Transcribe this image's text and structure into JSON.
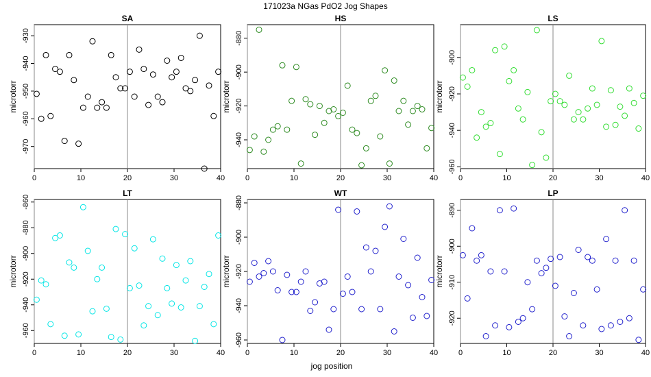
{
  "figure": {
    "title": "171023a   NGas PdO2 Jog Shapes",
    "xlabel": "jog position"
  },
  "chart_data": [
    {
      "type": "scatter",
      "title": "SA",
      "ylabel": "microtorr",
      "color": "#000000",
      "xlim": [
        0,
        40
      ],
      "ylim": [
        -978,
        -926
      ],
      "xticks": [
        0,
        10,
        20,
        30,
        40
      ],
      "yticks": [
        -930,
        -940,
        -950,
        -960,
        -970
      ],
      "vline": 20,
      "x": [
        0.5,
        1.5,
        2.5,
        3.5,
        4.5,
        5.5,
        6.5,
        7.5,
        8.5,
        9.5,
        10.5,
        11.5,
        12.5,
        13.5,
        14.5,
        15.5,
        16.5,
        17.5,
        18.5,
        19.5,
        20.5,
        21.5,
        22.5,
        23.5,
        24.5,
        25.5,
        26.5,
        27.5,
        28.5,
        29.5,
        30.5,
        31.5,
        32.5,
        33.5,
        34.5,
        35.5,
        36.5,
        37.5,
        38.5,
        39.5
      ],
      "y": [
        -951,
        -960,
        -937,
        -959,
        -942,
        -943,
        -968,
        -937,
        -946,
        -969,
        -956,
        -952,
        -932,
        -956,
        -954,
        -956,
        -937,
        -945,
        -949,
        -949,
        -943,
        -952,
        -935,
        -942,
        -955,
        -944,
        -952,
        -954,
        -939,
        -945,
        -943,
        -938,
        -949,
        -950,
        -946,
        -930,
        -978,
        -948,
        -959,
        -943
      ]
    },
    {
      "type": "scatter",
      "title": "HS",
      "ylabel": "microtorr",
      "color": "#2e8b22",
      "xlim": [
        0,
        40
      ],
      "ylim": [
        -957,
        -872
      ],
      "xticks": [
        0,
        10,
        20,
        30,
        40
      ],
      "yticks": [
        -880,
        -900,
        -920,
        -940
      ],
      "vline": 20,
      "x": [
        0.5,
        1.5,
        2.5,
        3.5,
        4.5,
        5.5,
        6.5,
        7.5,
        8.5,
        9.5,
        10.5,
        11.5,
        12.5,
        13.5,
        14.5,
        15.5,
        16.5,
        17.5,
        18.5,
        19.5,
        20.5,
        21.5,
        22.5,
        23.5,
        24.5,
        25.5,
        26.5,
        27.5,
        28.5,
        29.5,
        30.5,
        31.5,
        32.5,
        33.5,
        34.5,
        35.5,
        36.5,
        37.5,
        38.5,
        39.5
      ],
      "y": [
        -946,
        -938,
        -875,
        -947,
        -940,
        -934,
        -932,
        -896,
        -934,
        -917,
        -897,
        -954,
        -916,
        -919,
        -937,
        -920,
        -930,
        -923,
        -922,
        -926,
        -924,
        -908,
        -934,
        -936,
        -955,
        -945,
        -917,
        -914,
        -938,
        -899,
        -954,
        -905,
        -923,
        -917,
        -931,
        -923,
        -920,
        -922,
        -945,
        -933
      ]
    },
    {
      "type": "scatter",
      "title": "LS",
      "ylabel": "microtorr",
      "color": "#33dd33",
      "xlim": [
        0,
        40
      ],
      "ylim": [
        -961,
        -882
      ],
      "xticks": [
        0,
        10,
        20,
        30,
        40
      ],
      "yticks": [
        -900,
        -920,
        -940,
        -960
      ],
      "vline": 20,
      "x": [
        0.5,
        1.5,
        2.5,
        3.5,
        4.5,
        5.5,
        6.5,
        7.5,
        8.5,
        9.5,
        10.5,
        11.5,
        12.5,
        13.5,
        14.5,
        15.5,
        16.5,
        17.5,
        18.5,
        19.5,
        20.5,
        21.5,
        22.5,
        23.5,
        24.5,
        25.5,
        26.5,
        27.5,
        28.5,
        29.5,
        30.5,
        31.5,
        32.5,
        33.5,
        34.5,
        35.5,
        36.5,
        37.5,
        38.5,
        39.5
      ],
      "y": [
        -911,
        -916,
        -907,
        -944,
        -930,
        -938,
        -936,
        -896,
        -953,
        -894,
        -913,
        -907,
        -928,
        -934,
        -919,
        -959,
        -885,
        -941,
        -955,
        -924,
        -920,
        -924,
        -926,
        -910,
        -934,
        -930,
        -934,
        -928,
        -917,
        -926,
        -891,
        -938,
        -918,
        -937,
        -927,
        -932,
        -917,
        -925,
        -939,
        -921
      ]
    },
    {
      "type": "scatter",
      "title": "LT",
      "ylabel": "microtorr",
      "color": "#00e5e5",
      "xlim": [
        0,
        40
      ],
      "ylim": [
        -970,
        -858
      ],
      "xticks": [
        0,
        10,
        20,
        30,
        40
      ],
      "yticks": [
        -860,
        -880,
        -900,
        -920,
        -940,
        -960
      ],
      "vline": 20,
      "x": [
        0.5,
        1.5,
        2.5,
        3.5,
        4.5,
        5.5,
        6.5,
        7.5,
        8.5,
        9.5,
        10.5,
        11.5,
        12.5,
        13.5,
        14.5,
        15.5,
        16.5,
        17.5,
        18.5,
        19.5,
        20.5,
        21.5,
        22.5,
        23.5,
        24.5,
        25.5,
        26.5,
        27.5,
        28.5,
        29.5,
        30.5,
        31.5,
        32.5,
        33.5,
        34.5,
        35.5,
        36.5,
        37.5,
        38.5,
        39.5
      ],
      "y": [
        -936,
        -921,
        -924,
        -955,
        -888,
        -886,
        -964,
        -907,
        -911,
        -963,
        -864,
        -898,
        -945,
        -920,
        -911,
        -943,
        -965,
        -881,
        -967,
        -885,
        -927,
        -896,
        -925,
        -956,
        -941,
        -889,
        -948,
        -904,
        -927,
        -939,
        -909,
        -942,
        -921,
        -906,
        -968,
        -941,
        -926,
        -916,
        -955,
        -886
      ]
    },
    {
      "type": "scatter",
      "title": "WT",
      "ylabel": "microtorr",
      "color": "#2020cc",
      "xlim": [
        0,
        40
      ],
      "ylim": [
        -962,
        -878
      ],
      "xticks": [
        0,
        10,
        20,
        30,
        40
      ],
      "yticks": [
        -880,
        -900,
        -920,
        -940,
        -960
      ],
      "vline": 20,
      "x": [
        0.5,
        1.5,
        2.5,
        3.5,
        4.5,
        5.5,
        6.5,
        7.5,
        8.5,
        9.5,
        10.5,
        11.5,
        12.5,
        13.5,
        14.5,
        15.5,
        16.5,
        17.5,
        18.5,
        19.5,
        20.5,
        21.5,
        22.5,
        23.5,
        24.5,
        25.5,
        26.5,
        27.5,
        28.5,
        29.5,
        30.5,
        31.5,
        32.5,
        33.5,
        34.5,
        35.5,
        36.5,
        37.5,
        38.5,
        39.5
      ],
      "y": [
        -926,
        -915,
        -923,
        -921,
        -914,
        -920,
        -931,
        -960,
        -922,
        -932,
        -932,
        -926,
        -920,
        -943,
        -938,
        -927,
        -926,
        -954,
        -942,
        -884,
        -933,
        -923,
        -932,
        -885,
        -942,
        -906,
        -920,
        -908,
        -942,
        -894,
        -882,
        -955,
        -923,
        -901,
        -928,
        -947,
        -912,
        -935,
        -946,
        -925
      ]
    },
    {
      "type": "scatter",
      "title": "LP",
      "ylabel": "microtorr",
      "color": "#2020cc",
      "xlim": [
        0,
        40
      ],
      "ylim": [
        -927,
        -887
      ],
      "xticks": [
        0,
        10,
        20,
        30,
        40
      ],
      "yticks": [
        -890,
        -900,
        -910,
        -920
      ],
      "vline": 20,
      "x": [
        0.5,
        1.5,
        2.5,
        3.5,
        4.5,
        5.5,
        6.5,
        7.5,
        8.5,
        9.5,
        10.5,
        11.5,
        12.5,
        13.5,
        14.5,
        15.5,
        16.5,
        17.5,
        18.5,
        19.5,
        20.5,
        21.5,
        22.5,
        23.5,
        24.5,
        25.5,
        26.5,
        27.5,
        28.5,
        29.5,
        30.5,
        31.5,
        32.5,
        33.5,
        34.5,
        35.5,
        36.5,
        37.5,
        38.5,
        39.5
      ],
      "y": [
        -902.5,
        -914.5,
        -895,
        -904,
        -902.5,
        -925,
        -907,
        -922,
        -890,
        -907,
        -922.5,
        -889.5,
        -921,
        -920,
        -910,
        -917.5,
        -904,
        -907.5,
        -906,
        -903.5,
        -911,
        -903,
        -919.5,
        -925,
        -913,
        -901,
        -922,
        -903,
        -904,
        -912,
        -923,
        -898,
        -922,
        -904,
        -921,
        -890,
        -920,
        -904,
        -926,
        -912
      ]
    }
  ]
}
